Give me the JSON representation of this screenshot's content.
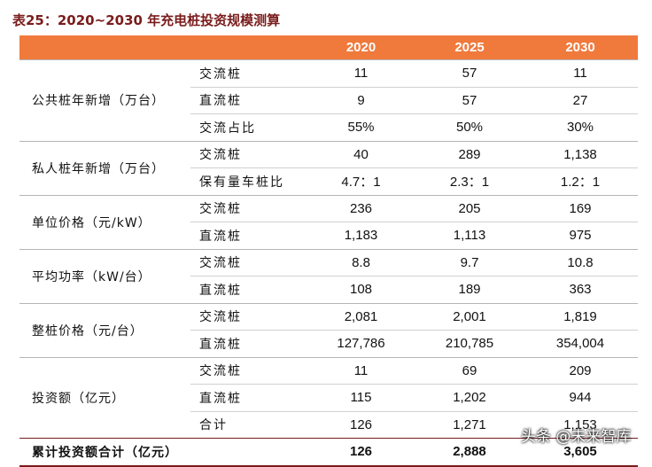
{
  "title": "表25：2020~2030 年充电桩投资规模测算",
  "table": {
    "header": [
      "2020",
      "2025",
      "2030"
    ],
    "groups": [
      {
        "label": "公共桩年新增（万台）",
        "rows": [
          [
            "交流桩",
            "11",
            "57",
            "11"
          ],
          [
            "直流桩",
            "9",
            "57",
            "27"
          ],
          [
            "交流占比",
            "55%",
            "50%",
            "30%"
          ]
        ]
      },
      {
        "label": "私人桩年新增（万台）",
        "rows": [
          [
            "交流桩",
            "40",
            "289",
            "1,138"
          ],
          [
            "保有量车桩比",
            "4.7：1",
            "2.3：1",
            "1.2：1"
          ]
        ]
      },
      {
        "label": "单位价格（元/kW）",
        "rows": [
          [
            "交流桩",
            "236",
            "205",
            "169"
          ],
          [
            "直流桩",
            "1,183",
            "1,113",
            "975"
          ]
        ]
      },
      {
        "label": "平均功率（kW/台）",
        "rows": [
          [
            "交流桩",
            "8.8",
            "9.7",
            "10.8"
          ],
          [
            "直流桩",
            "108",
            "189",
            "363"
          ]
        ]
      },
      {
        "label": "整桩价格（元/台）",
        "rows": [
          [
            "交流桩",
            "2,081",
            "2,001",
            "1,819"
          ],
          [
            "直流桩",
            "127,786",
            "210,785",
            "354,004"
          ]
        ]
      },
      {
        "label": "投资额（亿元）",
        "rows": [
          [
            "交流桩",
            "11",
            "69",
            "209"
          ],
          [
            "直流桩",
            "115",
            "1,202",
            "944"
          ],
          [
            "合计",
            "126",
            "1,271",
            "1,153"
          ]
        ]
      }
    ],
    "total": {
      "label": "累计投资额合计（亿元）",
      "values": [
        "126",
        "2,888",
        "3,605"
      ]
    }
  },
  "watermark": "头条 @未来智库"
}
